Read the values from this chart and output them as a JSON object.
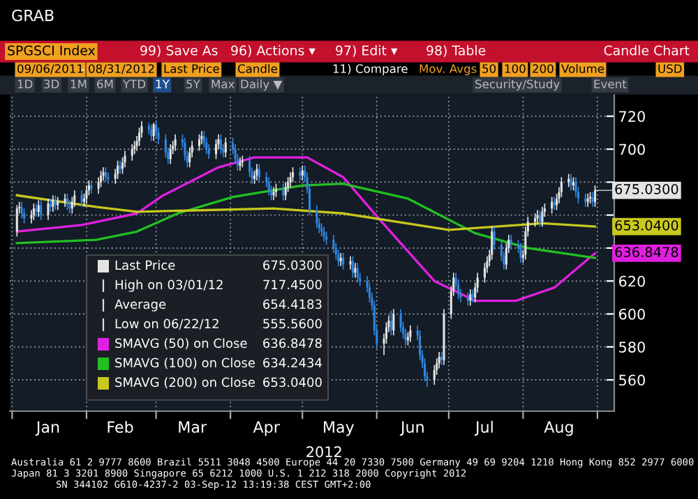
{
  "chart_data": {
    "type": "candlestick",
    "title": "SPGSCI Index",
    "subtitle": "Candle Chart",
    "xlabel": "2012",
    "xlim": [
      "2011-12-31",
      "2012-09-08"
    ],
    "ylim": [
      541,
      733
    ],
    "xticks": [
      {
        "value": "2012-01-01",
        "label": null
      },
      {
        "value": "2012-02-01",
        "label": null
      },
      {
        "value": "2012-03-01",
        "label": null
      },
      {
        "value": "2012-04-01",
        "label": null
      },
      {
        "value": "2012-05-01",
        "label": null
      },
      {
        "value": "2012-06-01",
        "label": null
      },
      {
        "value": "2012-07-01",
        "label": null
      },
      {
        "value": "2012-08-01",
        "label": null
      },
      {
        "value": "2012-09-01",
        "label": null
      },
      {
        "value": "2012-01-16",
        "label": "Jan"
      },
      {
        "value": "2012-02-15",
        "label": "Feb"
      },
      {
        "value": "2012-03-16",
        "label": "Mar"
      },
      {
        "value": "2012-04-16",
        "label": "Apr"
      },
      {
        "value": "2012-05-16",
        "label": "May"
      },
      {
        "value": "2012-06-16",
        "label": "Jun"
      },
      {
        "value": "2012-07-16",
        "label": "Jul"
      },
      {
        "value": "2012-08-16",
        "label": "Aug"
      }
    ],
    "yticks": [
      560,
      580,
      600,
      620,
      {
        "value": 640,
        "label": null
      },
      {
        "value": 660,
        "label": null
      },
      {
        "value": 680,
        "label": null
      },
      700,
      720
    ],
    "grid": true,
    "legend": "bottom left",
    "series": [
      {
        "name": "Last Price",
        "colors": [
          "#e4e4e4",
          "#e4e4e4",
          "#2f86e0",
          "#2f86e0",
          "#e4e4e4",
          "#e4e4e4",
          "#2f86e0",
          "#e4e4e4",
          "#2f86e0",
          "#e4e4e4",
          "#2f86e0",
          "#e4e4e4",
          "#2f86e0",
          "#e4e4e4",
          "#e4e4e4",
          "#2f86e0",
          "#2f86e0",
          "#e4e4e4",
          "#e4e4e4",
          "#2f86e0",
          "#e4e4e4",
          "#e4e4e4",
          "#e4e4e4",
          "#2f86e0",
          "#e4e4e4",
          "#e4e4e4",
          "#e4e4e4",
          "#2f86e0",
          "#2f86e0",
          "#e4e4e4",
          "#e4e4e4",
          "#2f86e0",
          "#e4e4e4",
          "#e4e4e4",
          "#e4e4e4",
          "#e4e4e4",
          "#e4e4e4",
          "#e4e4e4",
          "#e4e4e4",
          "#2f86e0",
          "#2f86e0",
          "#e4e4e4",
          "#2f86e0",
          "#2f86e0",
          "#2f86e0",
          "#2f86e0",
          "#e4e4e4",
          "#e4e4e4",
          "#e4e4e4",
          "#2f86e0",
          "#2f86e0",
          "#2f86e0",
          "#e4e4e4",
          "#e4e4e4",
          "#e4e4e4",
          "#e4e4e4",
          "#2f86e0",
          "#2f86e0",
          "#2f86e0",
          "#e4e4e4",
          "#e4e4e4",
          "#2f86e0",
          "#2f86e0",
          "#e4e4e4",
          "#2f86e0",
          "#2f86e0",
          "#2f86e0",
          "#e4e4e4",
          "#e4e4e4",
          "#2f86e0",
          "#2f86e0",
          "#e4e4e4",
          "#e4e4e4",
          "#2f86e0",
          "#2f86e0",
          "#2f86e0",
          "#2f86e0",
          "#e4e4e4",
          "#e4e4e4",
          "#2f86e0",
          "#e4e4e4",
          "#e4e4e4",
          "#e4e4e4",
          "#e4e4e4",
          "#2f86e0",
          "#e4e4e4",
          "#2f86e0",
          "#2f86e0",
          "#2f86e0",
          "#2f86e0",
          "#2f86e0",
          "#2f86e0",
          "#2f86e0",
          "#2f86e0",
          "#2f86e0",
          "#2f86e0",
          "#2f86e0",
          "#e4e4e4",
          "#2f86e0",
          "#e4e4e4",
          "#2f86e0",
          "#e4e4e4",
          "#2f86e0",
          "#2f86e0",
          "#2f86e0",
          "#2f86e0",
          "#2f86e0",
          "#2f86e0",
          "#2f86e0",
          "#e4e4e4",
          "#e4e4e4",
          "#e4e4e4",
          "#2f86e0",
          "#e4e4e4",
          "#2f86e0",
          "#2f86e0",
          "#2f86e0",
          "#e4e4e4",
          "#e4e4e4",
          "#2f86e0",
          "#2f86e0",
          "#2f86e0",
          "#2f86e0",
          "#2f86e0",
          "#e4e4e4",
          "#e4e4e4",
          "#e4e4e4",
          "#2f86e0",
          "#e4e4e4",
          "#e4e4e4",
          "#e4e4e4",
          "#2f86e0",
          "#2f86e0",
          "#2f86e0",
          "#2f86e0",
          "#e4e4e4",
          "#2f86e0",
          "#e4e4e4",
          "#e4e4e4",
          "#e4e4e4",
          "#e4e4e4",
          "#e4e4e4",
          "#e4e4e4",
          "#2f86e0",
          "#2f86e0",
          "#2f86e0",
          "#e4e4e4",
          "#e4e4e4",
          "#2f86e0",
          "#2f86e0",
          "#2f86e0",
          "#e4e4e4",
          "#e4e4e4",
          "#e4e4e4",
          "#e4e4e4",
          "#e4e4e4",
          "#2f86e0",
          "#e4e4e4",
          "#e4e4e4",
          "#e4e4e4",
          "#2f86e0",
          "#e4e4e4",
          "#e4e4e4",
          "#e4e4e4",
          "#e4e4e4",
          "#2f86e0",
          "#e4e4e4",
          "#2f86e0",
          "#2f86e0",
          "#2f86e0",
          "#e4e4e4",
          "#e4e4e4",
          "#2f86e0",
          "#e4e4e4"
        ],
        "x": [
          "2012-01-03",
          "2012-01-04",
          "2012-01-05",
          "2012-01-06",
          "2012-01-09",
          "2012-01-10",
          "2012-01-11",
          "2012-01-12",
          "2012-01-13",
          "2012-01-16",
          "2012-01-17",
          "2012-01-18",
          "2012-01-19",
          "2012-01-20",
          "2012-01-23",
          "2012-01-24",
          "2012-01-25",
          "2012-01-26",
          "2012-01-27",
          "2012-01-30",
          "2012-01-31",
          "2012-02-01",
          "2012-02-02",
          "2012-02-03",
          "2012-02-06",
          "2012-02-07",
          "2012-02-08",
          "2012-02-09",
          "2012-02-10",
          "2012-02-13",
          "2012-02-14",
          "2012-02-15",
          "2012-02-16",
          "2012-02-17",
          "2012-02-20",
          "2012-02-21",
          "2012-02-22",
          "2012-02-23",
          "2012-02-24",
          "2012-02-27",
          "2012-02-28",
          "2012-02-29",
          "2012-03-01",
          "2012-03-02",
          "2012-03-05",
          "2012-03-06",
          "2012-03-07",
          "2012-03-08",
          "2012-03-09",
          "2012-03-12",
          "2012-03-13",
          "2012-03-14",
          "2012-03-15",
          "2012-03-16",
          "2012-03-19",
          "2012-03-20",
          "2012-03-21",
          "2012-03-22",
          "2012-03-23",
          "2012-03-26",
          "2012-03-27",
          "2012-03-28",
          "2012-03-29",
          "2012-03-30",
          "2012-04-02",
          "2012-04-03",
          "2012-04-04",
          "2012-04-05",
          "2012-04-06",
          "2012-04-09",
          "2012-04-10",
          "2012-04-11",
          "2012-04-12",
          "2012-04-13",
          "2012-04-16",
          "2012-04-17",
          "2012-04-18",
          "2012-04-19",
          "2012-04-20",
          "2012-04-23",
          "2012-04-24",
          "2012-04-25",
          "2012-04-26",
          "2012-04-27",
          "2012-04-30",
          "2012-05-01",
          "2012-05-02",
          "2012-05-03",
          "2012-05-04",
          "2012-05-07",
          "2012-05-08",
          "2012-05-09",
          "2012-05-10",
          "2012-05-11",
          "2012-05-14",
          "2012-05-15",
          "2012-05-16",
          "2012-05-17",
          "2012-05-18",
          "2012-05-21",
          "2012-05-22",
          "2012-05-23",
          "2012-05-24",
          "2012-05-25",
          "2012-05-28",
          "2012-05-29",
          "2012-05-30",
          "2012-05-31",
          "2012-06-01",
          "2012-06-04",
          "2012-06-05",
          "2012-06-06",
          "2012-06-07",
          "2012-06-08",
          "2012-06-11",
          "2012-06-12",
          "2012-06-13",
          "2012-06-14",
          "2012-06-15",
          "2012-06-18",
          "2012-06-19",
          "2012-06-20",
          "2012-06-21",
          "2012-06-22",
          "2012-06-25",
          "2012-06-26",
          "2012-06-27",
          "2012-06-28",
          "2012-06-29",
          "2012-07-02",
          "2012-07-03",
          "2012-07-04",
          "2012-07-05",
          "2012-07-06",
          "2012-07-09",
          "2012-07-10",
          "2012-07-11",
          "2012-07-12",
          "2012-07-13",
          "2012-07-16",
          "2012-07-17",
          "2012-07-18",
          "2012-07-19",
          "2012-07-20",
          "2012-07-23",
          "2012-07-24",
          "2012-07-25",
          "2012-07-26",
          "2012-07-27",
          "2012-07-30",
          "2012-07-31",
          "2012-08-01",
          "2012-08-02",
          "2012-08-03",
          "2012-08-06",
          "2012-08-07",
          "2012-08-08",
          "2012-08-09",
          "2012-08-10",
          "2012-08-13",
          "2012-08-14",
          "2012-08-15",
          "2012-08-16",
          "2012-08-17",
          "2012-08-20",
          "2012-08-21",
          "2012-08-22",
          "2012-08-23",
          "2012-08-24",
          "2012-08-27",
          "2012-08-28",
          "2012-08-29",
          "2012-08-30",
          "2012-08-31"
        ],
        "ohlc": [
          [
            650,
            666,
            647,
            664
          ],
          [
            664,
            668,
            661,
            665
          ],
          [
            665,
            668,
            658,
            661
          ],
          [
            661,
            664,
            655,
            658
          ],
          [
            658,
            663,
            655,
            660
          ],
          [
            660,
            667,
            657,
            664
          ],
          [
            664,
            667,
            659,
            662
          ],
          [
            662,
            669,
            659,
            666
          ],
          [
            666,
            669,
            657,
            660
          ],
          [
            660,
            670,
            657,
            667
          ],
          [
            667,
            670,
            662,
            665
          ],
          [
            665,
            672,
            662,
            669
          ],
          [
            669,
            672,
            663,
            666
          ],
          [
            666,
            671,
            663,
            668
          ],
          [
            668,
            673,
            665,
            670
          ],
          [
            670,
            673,
            663,
            666
          ],
          [
            666,
            669,
            661,
            664
          ],
          [
            664,
            671,
            661,
            668
          ],
          [
            668,
            675,
            665,
            672
          ],
          [
            672,
            675,
            665,
            668
          ],
          [
            668,
            673,
            665,
            670
          ],
          [
            670,
            678,
            667,
            675
          ],
          [
            675,
            681,
            672,
            678
          ],
          [
            678,
            681,
            673,
            676
          ],
          [
            676,
            683,
            673,
            680
          ],
          [
            680,
            687,
            677,
            684
          ],
          [
            684,
            689,
            681,
            686
          ],
          [
            686,
            689,
            680,
            683
          ],
          [
            683,
            686,
            679,
            682
          ],
          [
            682,
            688,
            679,
            685
          ],
          [
            685,
            693,
            682,
            690
          ],
          [
            690,
            693,
            685,
            688
          ],
          [
            688,
            695,
            685,
            692
          ],
          [
            692,
            699,
            689,
            696
          ],
          [
            696,
            703,
            693,
            700
          ],
          [
            700,
            705,
            697,
            702
          ],
          [
            702,
            708,
            699,
            705
          ],
          [
            705,
            713,
            702,
            710
          ],
          [
            710,
            717,
            707,
            714
          ],
          [
            714,
            716,
            709,
            712
          ],
          [
            712,
            715,
            705,
            708
          ],
          [
            708,
            716,
            705,
            715
          ],
          [
            715,
            717.45,
            707,
            710
          ],
          [
            710,
            713,
            703,
            706
          ],
          [
            706,
            709,
            695,
            698
          ],
          [
            698,
            701,
            691,
            694
          ],
          [
            694,
            703,
            691,
            700
          ],
          [
            700,
            705,
            697,
            702
          ],
          [
            702,
            709,
            699,
            706
          ],
          [
            706,
            709,
            701,
            704
          ],
          [
            704,
            707,
            693,
            696
          ],
          [
            696,
            699,
            689,
            692
          ],
          [
            692,
            701,
            689,
            698
          ],
          [
            698,
            705,
            695,
            702
          ],
          [
            702,
            709,
            699,
            706
          ],
          [
            706,
            711,
            703,
            708
          ],
          [
            708,
            711,
            701,
            704
          ],
          [
            704,
            707,
            697,
            700
          ],
          [
            700,
            703,
            694,
            697
          ],
          [
            697,
            706,
            694,
            703
          ],
          [
            703,
            709,
            700,
            706
          ],
          [
            706,
            709,
            697,
            700
          ],
          [
            700,
            703,
            695,
            698
          ],
          [
            698,
            707,
            695,
            704
          ],
          [
            704,
            707,
            697,
            700
          ],
          [
            700,
            703,
            691,
            694
          ],
          [
            694,
            697,
            687,
            690
          ],
          [
            690,
            695,
            687,
            692
          ],
          [
            692,
            696,
            689,
            693
          ],
          [
            693,
            696,
            683,
            686
          ],
          [
            686,
            689,
            679,
            682
          ],
          [
            682,
            687,
            679,
            684
          ],
          [
            684,
            691,
            681,
            688
          ],
          [
            688,
            691,
            680,
            683
          ],
          [
            683,
            686,
            677,
            680
          ],
          [
            680,
            683,
            672,
            675
          ],
          [
            675,
            678,
            669,
            672
          ],
          [
            672,
            677,
            669,
            674
          ],
          [
            674,
            679,
            671,
            676
          ],
          [
            676,
            679,
            669,
            672
          ],
          [
            672,
            680,
            669,
            677
          ],
          [
            677,
            683,
            674,
            680
          ],
          [
            680,
            686,
            677,
            683
          ],
          [
            683,
            689,
            680,
            686
          ],
          [
            686,
            689,
            681,
            684
          ],
          [
            684,
            690,
            681,
            687
          ],
          [
            687,
            690,
            680,
            683
          ],
          [
            683,
            686,
            673,
            676
          ],
          [
            676,
            679,
            660,
            663
          ],
          [
            663,
            666,
            652,
            655
          ],
          [
            655,
            658,
            649,
            652
          ],
          [
            652,
            655,
            647,
            650
          ],
          [
            650,
            653,
            644,
            647
          ],
          [
            647,
            650,
            642,
            645
          ],
          [
            645,
            648,
            637,
            640
          ],
          [
            640,
            643,
            633,
            636
          ],
          [
            636,
            639,
            629,
            632
          ],
          [
            632,
            637,
            629,
            634
          ],
          [
            634,
            637,
            627,
            630
          ],
          [
            630,
            635,
            627,
            632
          ],
          [
            632,
            635,
            622,
            625
          ],
          [
            625,
            631,
            622,
            628
          ],
          [
            628,
            631,
            619,
            622
          ],
          [
            622,
            625,
            617,
            620
          ],
          [
            620,
            623,
            613,
            616
          ],
          [
            616,
            619,
            607,
            610
          ],
          [
            610,
            613,
            602,
            605
          ],
          [
            605,
            608,
            587,
            590
          ],
          [
            590,
            593,
            579,
            582
          ],
          [
            582,
            588,
            575,
            585
          ],
          [
            585,
            595,
            582,
            592
          ],
          [
            592,
            599,
            589,
            596
          ],
          [
            596,
            602,
            587,
            590
          ],
          [
            590,
            603,
            587,
            600
          ],
          [
            600,
            603,
            589,
            592
          ],
          [
            592,
            595,
            585,
            588
          ],
          [
            588,
            591,
            581,
            584
          ],
          [
            584,
            589,
            581,
            586
          ],
          [
            586,
            593,
            583,
            590
          ],
          [
            590,
            593,
            584,
            587
          ],
          [
            587,
            590,
            572,
            575
          ],
          [
            575,
            578,
            567,
            570
          ],
          [
            570,
            573,
            559,
            562
          ],
          [
            562,
            565,
            555.56,
            560
          ],
          [
            560,
            569,
            557,
            566
          ],
          [
            566,
            573,
            563,
            570
          ],
          [
            570,
            577,
            567,
            574
          ],
          [
            574,
            577,
            569,
            572
          ],
          [
            572,
            603,
            569,
            600
          ],
          [
            600,
            617,
            597,
            614
          ],
          [
            614,
            625,
            611,
            622
          ],
          [
            622,
            625,
            615,
            618
          ],
          [
            618,
            621,
            609,
            612
          ],
          [
            612,
            615,
            607,
            610
          ],
          [
            610,
            613,
            605,
            608
          ],
          [
            608,
            615,
            605,
            612
          ],
          [
            612,
            615,
            607,
            610
          ],
          [
            610,
            619,
            607,
            616
          ],
          [
            616,
            625,
            613,
            622
          ],
          [
            622,
            631,
            619,
            628
          ],
          [
            628,
            635,
            625,
            632
          ],
          [
            632,
            639,
            629,
            636
          ],
          [
            636,
            653,
            633,
            650
          ],
          [
            650,
            653,
            639,
            642
          ],
          [
            642,
            645,
            632,
            635
          ],
          [
            635,
            638,
            627,
            630
          ],
          [
            630,
            643,
            627,
            640
          ],
          [
            640,
            648,
            637,
            645
          ],
          [
            645,
            648,
            639,
            642
          ],
          [
            642,
            645,
            637,
            640
          ],
          [
            640,
            643,
            631,
            634
          ],
          [
            634,
            639,
            631,
            636
          ],
          [
            636,
            653,
            633,
            650
          ],
          [
            650,
            659,
            647,
            656
          ],
          [
            656,
            661,
            653,
            658
          ],
          [
            658,
            663,
            655,
            660
          ],
          [
            660,
            663,
            653,
            656
          ],
          [
            656,
            665,
            653,
            662
          ],
          [
            662,
            667,
            659,
            664
          ],
          [
            664,
            671,
            661,
            668
          ],
          [
            668,
            671,
            663,
            666
          ],
          [
            666,
            673,
            663,
            670
          ],
          [
            670,
            677,
            667,
            674
          ],
          [
            674,
            683,
            671,
            680
          ],
          [
            680,
            685,
            677,
            682
          ],
          [
            682,
            685,
            675,
            678
          ],
          [
            678,
            683,
            675,
            680
          ],
          [
            680,
            683,
            671,
            674
          ],
          [
            674,
            677,
            667,
            670
          ],
          [
            670,
            673,
            665,
            668
          ],
          [
            668,
            673,
            665,
            670
          ],
          [
            670,
            674,
            667,
            671
          ],
          [
            671,
            674,
            665,
            668
          ],
          [
            668,
            678,
            665,
            675.03
          ]
        ]
      },
      {
        "type": "line",
        "name": "SMAVG (50) on Close",
        "color": "#e020e0",
        "x": [
          "2012-01-03",
          "2012-01-30",
          "2012-02-22",
          "2012-03-04",
          "2012-03-27",
          "2012-04-11",
          "2012-05-03",
          "2012-05-18",
          "2012-06-03",
          "2012-06-25",
          "2012-07-12",
          "2012-07-29",
          "2012-08-14",
          "2012-08-31"
        ],
        "values": [
          650,
          654,
          661,
          672,
          689,
          695,
          695,
          683,
          656,
          620,
          608,
          608,
          616,
          636.8478
        ],
        "value_labels": [
          null,
          null,
          null,
          null,
          null,
          null,
          null,
          null,
          null,
          null,
          null,
          null,
          null,
          "636.8478"
        ]
      },
      {
        "type": "line",
        "name": "SMAVG (100) on Close",
        "color": "#22c022",
        "x": [
          "2012-01-03",
          "2012-02-05",
          "2012-02-22",
          "2012-03-10",
          "2012-04-02",
          "2012-05-01",
          "2012-05-18",
          "2012-06-14",
          "2012-07-12",
          "2012-08-03",
          "2012-08-31"
        ],
        "values": [
          643,
          645,
          650,
          661,
          671,
          678,
          679,
          670,
          649,
          640,
          634
        ]
      },
      {
        "type": "line",
        "name": "SMAVG (200) on Close",
        "color": "#c8c81e",
        "x": [
          "2012-01-03",
          "2012-02-05",
          "2012-02-22",
          "2012-04-19",
          "2012-05-18",
          "2012-07-01",
          "2012-08-09",
          "2012-08-31"
        ],
        "values": [
          672,
          665,
          662,
          664,
          661,
          651,
          655,
          653.04
        ],
        "value_labels": [
          null,
          null,
          null,
          null,
          null,
          null,
          null,
          "653.0400"
        ]
      }
    ],
    "annotations": [
      "GRAB",
      "99) Save As",
      "96) Actions ▾",
      "97) Edit ▾",
      "98) Table",
      "09/06/2011",
      "-",
      "08/31/2012",
      "Last Price",
      "Candle",
      "11) Compare",
      "Mov. Avgs",
      "50",
      "100",
      "200",
      "Volume",
      "USD",
      "1D",
      "3D",
      "1M",
      "6M",
      "YTD",
      "1Y",
      "5Y",
      "Max",
      "Daily ▼",
      "Security/Study",
      "Event",
      "675.0300",
      "High on 03/01/12",
      "717.4500",
      "Average",
      "654.4183",
      "Low on 06/22/12",
      "555.5600",
      "636.8478",
      "634.2434",
      "653.0400",
      "Australia 61 2 9777 8600 Brazil 5511 3048 4500 Europe 44 20 7330 7500 Germany 49 69 9204 1210 Hong Kong 852 2977 6000",
      "Japan 81 3 3201 8900 Singapore 65 6212 1000 U.S. 1 212 318 2000 Copyright 2012",
      "SN 344102 G610-4237-2 03-Sep-12 13:19:38 CEST GMT+2:00",
      {
        "text": "675.0300",
        "x": "2012-08-31",
        "y": 675.03
      }
    ]
  }
}
